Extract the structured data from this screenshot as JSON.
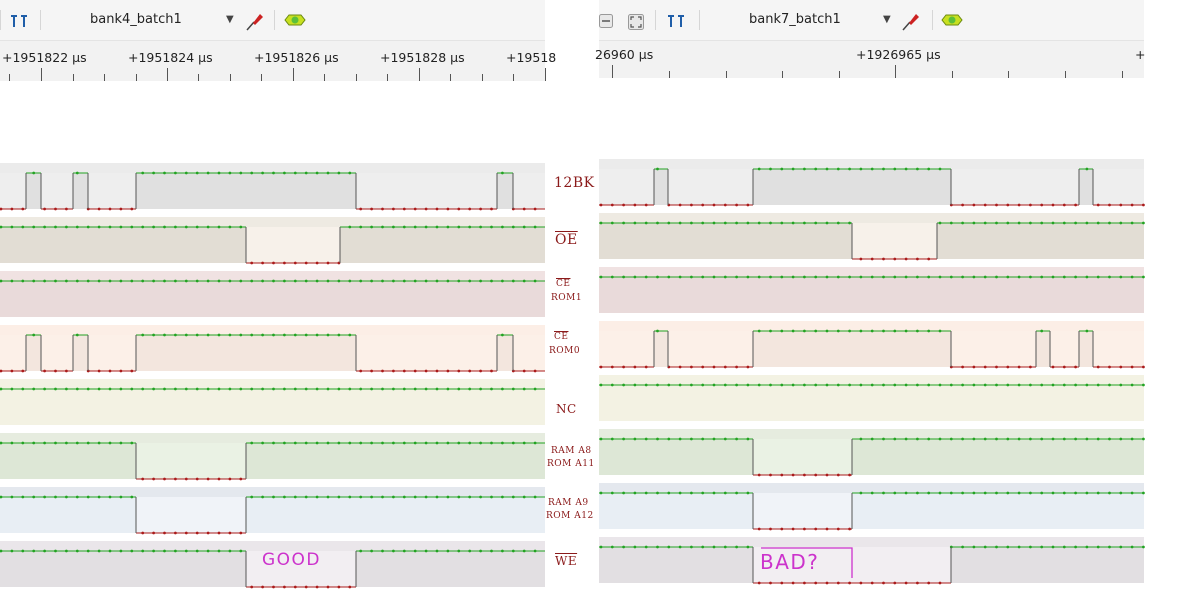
{
  "left_panel": {
    "device_name": "bank4_batch1",
    "ruler_labels": [
      "+1951822 µs",
      "+1951824 µs",
      "+1951826 µs",
      "+1951828 µs",
      "+19518"
    ],
    "note": "GOOD"
  },
  "right_panel": {
    "device_name": "bank7_batch1",
    "ruler_labels": [
      "26960 µs",
      "+1926965 µs",
      "+"
    ],
    "note": "BAD?"
  },
  "annotations": {
    "ch0": [
      "12BK"
    ],
    "ch1": [
      "OE"
    ],
    "ch2": [
      "CE",
      "ROM1"
    ],
    "ch3": [
      "CE",
      "ROM0"
    ],
    "ch4": [
      "NC"
    ],
    "ch5": [
      "RAM A8",
      "ROM A11"
    ],
    "ch6": [
      "RAM A9",
      "ROM A12"
    ],
    "ch7": [
      "WE"
    ]
  },
  "icons": {
    "cursor_icon": "cursor-pair-icon",
    "probe_icon": "probe-icon",
    "decoder_icon": "protocol-decoder-icon",
    "zoom_out_icon": "zoom-minus-icon",
    "zoom_fit_icon": "zoom-fit-icon",
    "dropdown_icon": "chevron-down-icon"
  },
  "colors": {
    "high_trace": "#22a322",
    "low_trace": "#aa1b1b",
    "edge_trace": "#555555",
    "annotation": "#8b1a1a",
    "note": "#cc33cc"
  }
}
